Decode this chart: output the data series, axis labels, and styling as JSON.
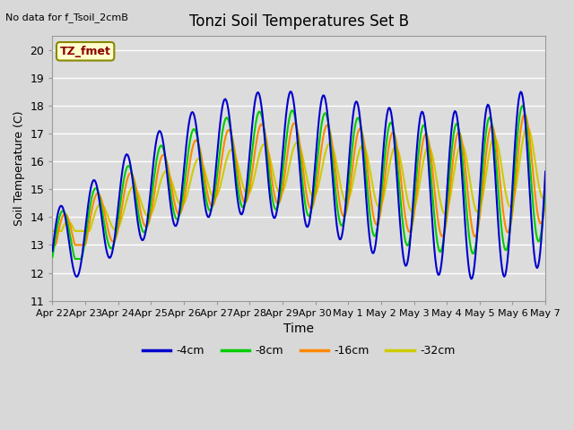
{
  "title": "Tonzi Soil Temperatures Set B",
  "no_data_label": "No data for f_Tsoil_2cmB",
  "tz_fmet_label": "TZ_fmet",
  "xlabel": "Time",
  "ylabel": "Soil Temperature (C)",
  "ylim": [
    11.0,
    20.5
  ],
  "yticks": [
    11.0,
    12.0,
    13.0,
    14.0,
    15.0,
    16.0,
    17.0,
    18.0,
    19.0,
    20.0
  ],
  "series_colors": [
    "#0000cc",
    "#00cc00",
    "#ff8800",
    "#cccc00"
  ],
  "series_labels": [
    "-4cm",
    "-8cm",
    "-16cm",
    "-32cm"
  ],
  "x_tick_labels": [
    "Apr 22",
    "Apr 23",
    "Apr 24",
    "Apr 25",
    "Apr 26",
    "Apr 27",
    "Apr 28",
    "Apr 29",
    "Apr 30",
    "May 1",
    "May 2",
    "May 3",
    "May 4",
    "May 5",
    "May 6",
    "May 7"
  ],
  "date_start": 0,
  "date_end": 15
}
